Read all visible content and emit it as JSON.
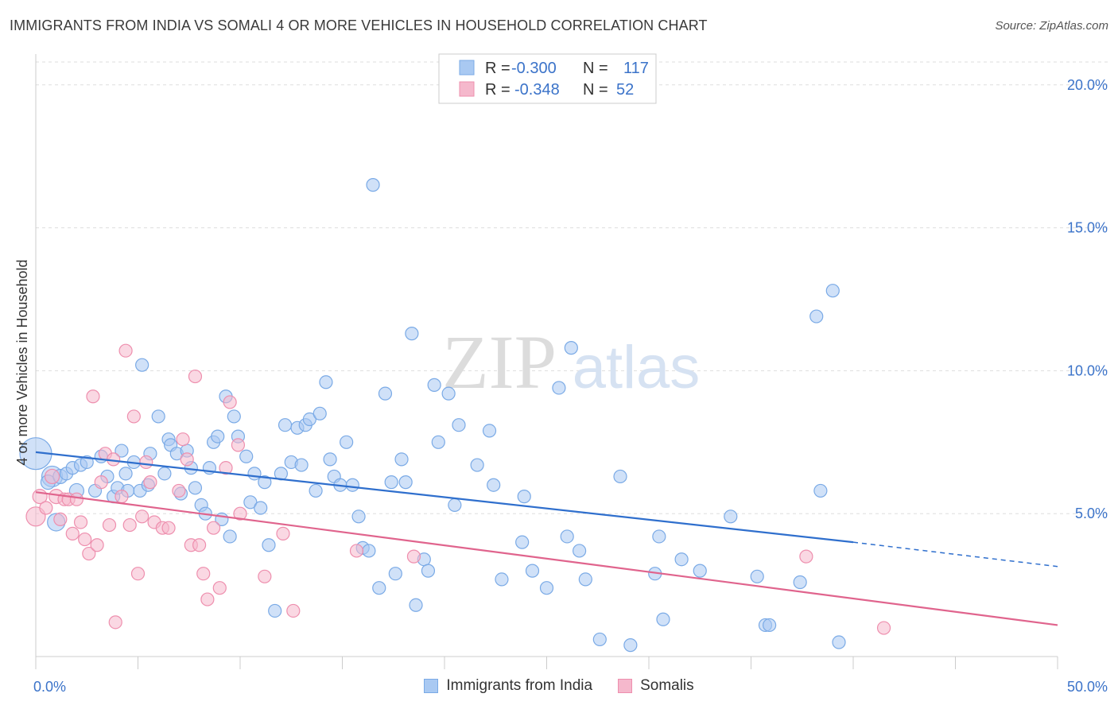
{
  "title": "IMMIGRANTS FROM INDIA VS SOMALI 4 OR MORE VEHICLES IN HOUSEHOLD CORRELATION CHART",
  "source": "Source: ZipAtlas.com",
  "watermark": {
    "zip": "ZIP",
    "atlas": "atlas"
  },
  "colors": {
    "india_fill": "#a9c9f2",
    "india_stroke": "#7aaae6",
    "india_line": "#2f6fcd",
    "somali_fill": "#f5b8cc",
    "somali_stroke": "#ee8fae",
    "somali_line": "#e0648d",
    "axis_text": "#3b73c9",
    "grid": "#dddddd"
  },
  "legend_top": [
    {
      "r_label": "R =",
      "r_value": "-0.300",
      "n_label": "N =",
      "n_value": "117"
    },
    {
      "r_label": "R =",
      "r_value": "-0.348",
      "n_label": "N =",
      "n_value": "52"
    }
  ],
  "legend_bottom": [
    "Immigrants from India",
    "Somalis"
  ],
  "chart_data": {
    "type": "scatter",
    "title": "IMMIGRANTS FROM INDIA VS SOMALI 4 OR MORE VEHICLES IN HOUSEHOLD CORRELATION CHART",
    "xlabel": "",
    "ylabel": "4 or more Vehicles in Household",
    "xlim": [
      0,
      50
    ],
    "ylim": [
      0,
      20.8
    ],
    "x_tick_labels": [
      "0.0%",
      "50.0%"
    ],
    "y_ticks": [
      5,
      10,
      15,
      20
    ],
    "y_tick_labels": [
      "5.0%",
      "10.0%",
      "15.0%",
      "20.0%"
    ],
    "grid": true,
    "series": [
      {
        "name": "Immigrants from India",
        "trend": {
          "x0": 0,
          "y0": 7.15,
          "x1": 40,
          "y1": 4.0,
          "dash_to_x": 50,
          "dash_to_y": 3.15
        },
        "points": [
          [
            0.0,
            7.1,
            20
          ],
          [
            0.8,
            6.3,
            13
          ],
          [
            1.0,
            4.7,
            11
          ],
          [
            0.6,
            6.1,
            9
          ],
          [
            1.2,
            6.3,
            9
          ],
          [
            1.5,
            6.4,
            8
          ],
          [
            1.8,
            6.6,
            8
          ],
          [
            2.2,
            6.7,
            8
          ],
          [
            2.5,
            6.8,
            8
          ],
          [
            2.0,
            5.8,
            9
          ],
          [
            2.9,
            5.8,
            8
          ],
          [
            3.2,
            7.0,
            8
          ],
          [
            3.5,
            6.3,
            8
          ],
          [
            3.8,
            5.6,
            8
          ],
          [
            4.0,
            5.9,
            8
          ],
          [
            4.2,
            7.2,
            8
          ],
          [
            4.4,
            6.4,
            8
          ],
          [
            4.5,
            5.8,
            8
          ],
          [
            4.8,
            6.8,
            8
          ],
          [
            5.1,
            5.8,
            8
          ],
          [
            5.2,
            10.2,
            8
          ],
          [
            5.5,
            6.0,
            8
          ],
          [
            5.6,
            7.1,
            8
          ],
          [
            6.0,
            8.4,
            8
          ],
          [
            6.3,
            6.4,
            8
          ],
          [
            6.5,
            7.6,
            8
          ],
          [
            6.6,
            7.4,
            8
          ],
          [
            6.9,
            7.1,
            8
          ],
          [
            7.1,
            5.7,
            8
          ],
          [
            7.4,
            7.2,
            8
          ],
          [
            7.6,
            6.6,
            8
          ],
          [
            7.8,
            5.9,
            8
          ],
          [
            8.1,
            5.3,
            8
          ],
          [
            8.3,
            5.0,
            8
          ],
          [
            8.5,
            6.6,
            8
          ],
          [
            8.7,
            7.5,
            8
          ],
          [
            8.9,
            7.7,
            8
          ],
          [
            9.1,
            4.8,
            8
          ],
          [
            9.3,
            9.1,
            8
          ],
          [
            9.5,
            4.2,
            8
          ],
          [
            9.7,
            8.4,
            8
          ],
          [
            9.9,
            7.7,
            8
          ],
          [
            10.3,
            7.0,
            8
          ],
          [
            10.5,
            5.4,
            8
          ],
          [
            10.7,
            6.4,
            8
          ],
          [
            11.0,
            5.2,
            8
          ],
          [
            11.2,
            6.1,
            8
          ],
          [
            11.4,
            3.9,
            8
          ],
          [
            11.7,
            1.6,
            8
          ],
          [
            12.0,
            6.4,
            8
          ],
          [
            12.2,
            8.1,
            8
          ],
          [
            12.5,
            6.8,
            8
          ],
          [
            12.8,
            8.0,
            8
          ],
          [
            13.0,
            6.7,
            8
          ],
          [
            13.2,
            8.1,
            8
          ],
          [
            13.4,
            8.3,
            8
          ],
          [
            13.7,
            5.8,
            8
          ],
          [
            13.9,
            8.5,
            8
          ],
          [
            14.2,
            9.6,
            8
          ],
          [
            14.4,
            6.9,
            8
          ],
          [
            14.6,
            6.3,
            8
          ],
          [
            14.9,
            6.0,
            8
          ],
          [
            15.2,
            7.5,
            8
          ],
          [
            15.5,
            6.0,
            8
          ],
          [
            15.8,
            4.9,
            8
          ],
          [
            16.0,
            3.8,
            8
          ],
          [
            16.3,
            3.7,
            8
          ],
          [
            16.5,
            16.5,
            8
          ],
          [
            16.8,
            2.4,
            8
          ],
          [
            17.1,
            9.2,
            8
          ],
          [
            17.4,
            6.1,
            8
          ],
          [
            17.6,
            2.9,
            8
          ],
          [
            17.9,
            6.9,
            8
          ],
          [
            18.1,
            6.1,
            8
          ],
          [
            18.4,
            11.3,
            8
          ],
          [
            18.6,
            1.8,
            8
          ],
          [
            19.0,
            3.4,
            8
          ],
          [
            19.2,
            3.0,
            8
          ],
          [
            19.5,
            9.5,
            8
          ],
          [
            19.7,
            7.5,
            8
          ],
          [
            20.2,
            9.2,
            8
          ],
          [
            20.5,
            5.3,
            8
          ],
          [
            20.7,
            8.1,
            8
          ],
          [
            21.6,
            6.7,
            8
          ],
          [
            22.2,
            7.9,
            8
          ],
          [
            22.4,
            6.0,
            8
          ],
          [
            22.8,
            2.7,
            8
          ],
          [
            23.8,
            4.0,
            8
          ],
          [
            23.9,
            5.6,
            8
          ],
          [
            24.3,
            3.0,
            8
          ],
          [
            25.0,
            2.4,
            8
          ],
          [
            25.6,
            9.4,
            8
          ],
          [
            26.0,
            4.2,
            8
          ],
          [
            26.2,
            10.8,
            8
          ],
          [
            26.6,
            3.7,
            8
          ],
          [
            26.9,
            2.7,
            8
          ],
          [
            27.6,
            0.6,
            8
          ],
          [
            28.6,
            6.3,
            8
          ],
          [
            29.1,
            0.4,
            8
          ],
          [
            30.3,
            2.9,
            8
          ],
          [
            30.5,
            4.2,
            8
          ],
          [
            30.7,
            1.3,
            8
          ],
          [
            31.6,
            3.4,
            8
          ],
          [
            32.5,
            3.0,
            8
          ],
          [
            34.0,
            4.9,
            8
          ],
          [
            35.3,
            2.8,
            8
          ],
          [
            35.7,
            1.1,
            8
          ],
          [
            35.9,
            1.1,
            8
          ],
          [
            37.4,
            2.6,
            8
          ],
          [
            38.2,
            11.9,
            8
          ],
          [
            38.4,
            5.8,
            8
          ],
          [
            39.0,
            12.8,
            8
          ],
          [
            39.3,
            0.5,
            8
          ]
        ]
      },
      {
        "name": "Somalis",
        "trend": {
          "x0": 0,
          "y0": 5.75,
          "x1": 50,
          "y1": 1.1
        },
        "points": [
          [
            0.0,
            4.9,
            12
          ],
          [
            0.2,
            5.6,
            9
          ],
          [
            0.5,
            5.2,
            8
          ],
          [
            0.8,
            6.3,
            9
          ],
          [
            1.0,
            5.6,
            9
          ],
          [
            1.2,
            4.8,
            8
          ],
          [
            1.4,
            5.5,
            8
          ],
          [
            1.6,
            5.5,
            8
          ],
          [
            1.8,
            4.3,
            8
          ],
          [
            2.0,
            5.5,
            8
          ],
          [
            2.2,
            4.7,
            8
          ],
          [
            2.4,
            4.1,
            8
          ],
          [
            2.6,
            3.6,
            8
          ],
          [
            2.8,
            9.1,
            8
          ],
          [
            3.0,
            3.9,
            8
          ],
          [
            3.2,
            6.1,
            8
          ],
          [
            3.4,
            7.1,
            8
          ],
          [
            3.6,
            4.6,
            8
          ],
          [
            3.8,
            6.9,
            8
          ],
          [
            3.9,
            1.2,
            8
          ],
          [
            4.2,
            5.6,
            8
          ],
          [
            4.4,
            10.7,
            8
          ],
          [
            4.6,
            4.6,
            8
          ],
          [
            4.8,
            8.4,
            8
          ],
          [
            5.0,
            2.9,
            8
          ],
          [
            5.2,
            4.9,
            8
          ],
          [
            5.4,
            6.8,
            8
          ],
          [
            5.6,
            6.1,
            8
          ],
          [
            5.8,
            4.7,
            8
          ],
          [
            6.2,
            4.5,
            8
          ],
          [
            6.5,
            4.5,
            8
          ],
          [
            7.0,
            5.8,
            8
          ],
          [
            7.2,
            7.6,
            8
          ],
          [
            7.4,
            6.9,
            8
          ],
          [
            7.6,
            3.9,
            8
          ],
          [
            7.8,
            9.8,
            8
          ],
          [
            8.0,
            3.9,
            8
          ],
          [
            8.2,
            2.9,
            8
          ],
          [
            8.4,
            2.0,
            8
          ],
          [
            8.7,
            4.5,
            8
          ],
          [
            9.0,
            2.4,
            8
          ],
          [
            9.3,
            6.6,
            8
          ],
          [
            9.5,
            8.9,
            8
          ],
          [
            9.9,
            7.4,
            8
          ],
          [
            10.0,
            5.0,
            8
          ],
          [
            11.2,
            2.8,
            8
          ],
          [
            12.1,
            4.3,
            8
          ],
          [
            12.6,
            1.6,
            8
          ],
          [
            15.7,
            3.7,
            8
          ],
          [
            18.5,
            3.5,
            8
          ],
          [
            37.7,
            3.5,
            8
          ],
          [
            41.5,
            1.0,
            8
          ]
        ]
      }
    ]
  }
}
